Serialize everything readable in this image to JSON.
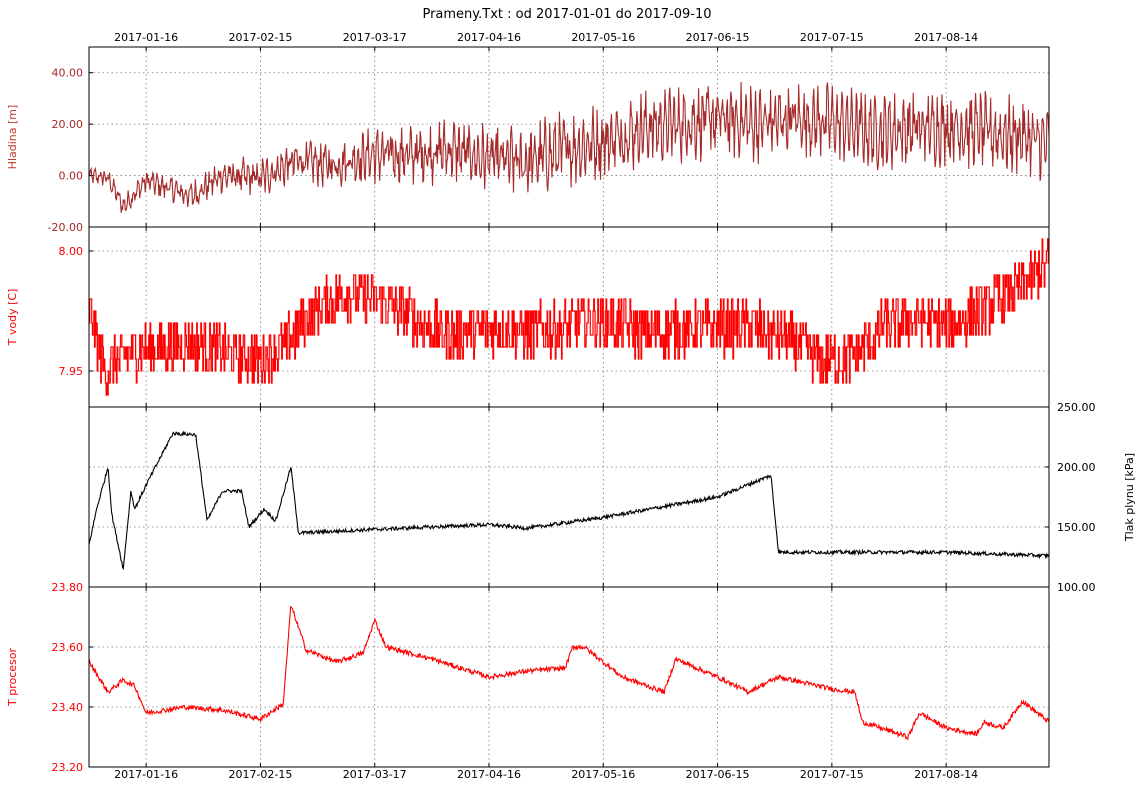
{
  "figure_title": "Prameny.Txt : od 2017-01-01 do 2017-09-10",
  "date_range": {
    "start": "2017-01-01",
    "end": "2017-09-10"
  },
  "date_ticks": [
    "2017-01-16",
    "2017-02-15",
    "2017-03-17",
    "2017-04-16",
    "2017-05-16",
    "2017-06-15",
    "2017-07-15",
    "2017-08-14"
  ],
  "chart_data": [
    {
      "type": "line",
      "ylabel": "Hladina [m]",
      "label_side": "left",
      "color": "#A52A2A",
      "ylim": [
        -20,
        50
      ],
      "yticks": [
        -20,
        0,
        20,
        40
      ],
      "tick_labels": [
        "-20.00",
        "0.00",
        "20.00",
        "40.00"
      ],
      "noise": 5,
      "series": [
        {
          "x": [
            "2017-01-01",
            "2017-01-06",
            "2017-01-10",
            "2017-01-16",
            "2017-01-22",
            "2017-01-28",
            "2017-02-05",
            "2017-02-15",
            "2017-02-25",
            "2017-03-05",
            "2017-03-17",
            "2017-03-27",
            "2017-04-06",
            "2017-04-16",
            "2017-04-26",
            "2017-05-06",
            "2017-05-16",
            "2017-05-26",
            "2017-06-05",
            "2017-06-15",
            "2017-06-25",
            "2017-07-05",
            "2017-07-15",
            "2017-07-25",
            "2017-08-04",
            "2017-08-14",
            "2017-08-24",
            "2017-09-03",
            "2017-09-10"
          ],
          "y": [
            0,
            -1,
            -12,
            -2,
            -5,
            -8,
            0,
            -1,
            6,
            4,
            8,
            8,
            10,
            6,
            5,
            10,
            13,
            18,
            20,
            22,
            20,
            22,
            21,
            17,
            18,
            19,
            17,
            15,
            12
          ]
        }
      ]
    },
    {
      "type": "line",
      "ylabel": "T vody [C]",
      "label_side": "left",
      "color": "#FF0000",
      "ylim": [
        7.935,
        8.01
      ],
      "yticks": [
        7.95,
        8.0
      ],
      "tick_labels": [
        "7.95",
        "8.00"
      ],
      "step": 0.01,
      "noise": 0,
      "series": [
        {
          "x": [
            "2017-01-01",
            "2017-01-05",
            "2017-01-12",
            "2017-01-20",
            "2017-01-28",
            "2017-02-05",
            "2017-02-15",
            "2017-02-22",
            "2017-03-01",
            "2017-03-10",
            "2017-03-20",
            "2017-03-27",
            "2017-04-05",
            "2017-04-16",
            "2017-04-26",
            "2017-05-06",
            "2017-05-16",
            "2017-05-26",
            "2017-06-05",
            "2017-06-15",
            "2017-06-25",
            "2017-07-05",
            "2017-07-12",
            "2017-07-20",
            "2017-07-28",
            "2017-08-05",
            "2017-08-14",
            "2017-08-24",
            "2017-09-03",
            "2017-09-10"
          ],
          "y": [
            7.976,
            7.95,
            7.958,
            7.96,
            7.962,
            7.958,
            7.955,
            7.962,
            7.975,
            7.983,
            7.978,
            7.972,
            7.965,
            7.968,
            7.966,
            7.968,
            7.972,
            7.966,
            7.967,
            7.968,
            7.968,
            7.962,
            7.955,
            7.955,
            7.968,
            7.972,
            7.968,
            7.976,
            7.986,
            7.995
          ]
        }
      ]
    },
    {
      "type": "line",
      "ylabel": "Tlak plynu [kPa]",
      "label_side": "right",
      "color": "#000000",
      "ylim": [
        100,
        250
      ],
      "yticks": [
        100,
        150,
        200,
        250
      ],
      "tick_labels": [
        "100.00",
        "150.00",
        "200.00",
        "250.00"
      ],
      "noise": 1.5,
      "series": [
        {
          "x": [
            "2017-01-01",
            "2017-01-03",
            "2017-01-06",
            "2017-01-07",
            "2017-01-10",
            "2017-01-12",
            "2017-01-13",
            "2017-01-16",
            "2017-01-23",
            "2017-01-29",
            "2017-02-01",
            "2017-02-05",
            "2017-02-10",
            "2017-02-12",
            "2017-02-16",
            "2017-02-19",
            "2017-02-23",
            "2017-02-25",
            "2017-03-17",
            "2017-04-16",
            "2017-04-26",
            "2017-05-16",
            "2017-06-15",
            "2017-06-29",
            "2017-07-01",
            "2017-07-15",
            "2017-08-14",
            "2017-09-10"
          ],
          "y": [
            135,
            165,
            200,
            160,
            115,
            180,
            165,
            185,
            228,
            227,
            155,
            180,
            180,
            150,
            165,
            155,
            200,
            145,
            148,
            152,
            149,
            158,
            175,
            193,
            129,
            129,
            129,
            126
          ]
        }
      ]
    },
    {
      "type": "line",
      "ylabel": "T procesor",
      "label_side": "left",
      "color": "#FF0000",
      "ylim": [
        23.2,
        23.8
      ],
      "yticks": [
        23.2,
        23.4,
        23.6,
        23.8
      ],
      "tick_labels": [
        "23.20",
        "23.40",
        "23.60",
        "23.80"
      ],
      "noise": 0.008,
      "series": [
        {
          "x": [
            "2017-01-01",
            "2017-01-06",
            "2017-01-10",
            "2017-01-13",
            "2017-01-16",
            "2017-01-26",
            "2017-02-05",
            "2017-02-15",
            "2017-02-21",
            "2017-02-23",
            "2017-02-27",
            "2017-03-07",
            "2017-03-14",
            "2017-03-17",
            "2017-03-20",
            "2017-04-01",
            "2017-04-16",
            "2017-04-26",
            "2017-05-06",
            "2017-05-08",
            "2017-05-11",
            "2017-05-16",
            "2017-05-21",
            "2017-06-01",
            "2017-06-04",
            "2017-06-15",
            "2017-06-23",
            "2017-07-01",
            "2017-07-15",
            "2017-07-21",
            "2017-07-23",
            "2017-08-04",
            "2017-08-07",
            "2017-08-14",
            "2017-08-22",
            "2017-08-24",
            "2017-08-29",
            "2017-09-03",
            "2017-09-10"
          ],
          "y": [
            23.55,
            23.45,
            23.49,
            23.47,
            23.38,
            23.4,
            23.39,
            23.36,
            23.41,
            23.74,
            23.59,
            23.55,
            23.58,
            23.69,
            23.6,
            23.56,
            23.5,
            23.52,
            23.53,
            23.6,
            23.6,
            23.55,
            23.5,
            23.45,
            23.56,
            23.5,
            23.45,
            23.5,
            23.46,
            23.45,
            23.35,
            23.3,
            23.38,
            23.33,
            23.31,
            23.35,
            23.33,
            23.42,
            23.35
          ]
        }
      ]
    }
  ]
}
